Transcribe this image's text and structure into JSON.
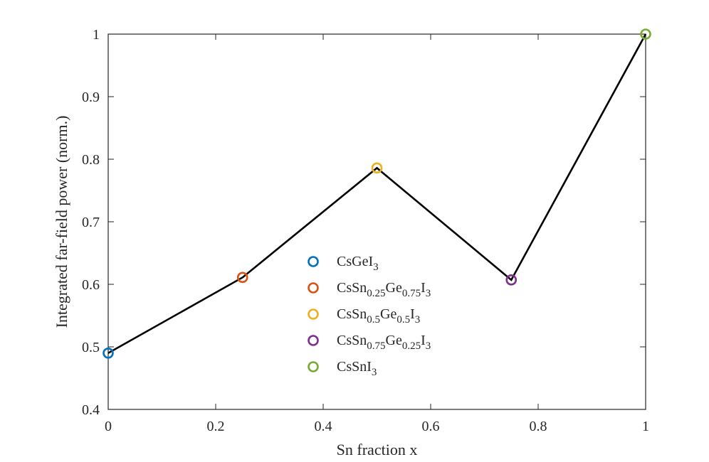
{
  "chart_data": {
    "type": "line",
    "title": "",
    "xlabel": "Sn fraction x",
    "ylabel": "Integrated far-field power (norm.)",
    "xlim": [
      0,
      1
    ],
    "ylim": [
      0.4,
      1
    ],
    "xticks": [
      "0",
      "0.2",
      "0.4",
      "0.6",
      "0.8",
      "1"
    ],
    "yticks": [
      "0.4",
      "0.5",
      "0.6",
      "0.7",
      "0.8",
      "0.9",
      "1"
    ],
    "grid": false,
    "legend_position": "center",
    "line_color": "#000000",
    "points": [
      {
        "x": 0,
        "y": 0.49,
        "color": "#0072BD",
        "label": {
          "parts": [
            [
              "CsGeI",
              ""
            ],
            [
              "3",
              "sub"
            ]
          ]
        }
      },
      {
        "x": 0.25,
        "y": 0.611,
        "color": "#D95319",
        "label": {
          "parts": [
            [
              "CsSn",
              ""
            ],
            [
              "0.25",
              "sub"
            ],
            [
              "Ge",
              ""
            ],
            [
              "0.75",
              "sub"
            ],
            [
              "I",
              ""
            ],
            [
              "3",
              "sub"
            ]
          ]
        }
      },
      {
        "x": 0.5,
        "y": 0.786,
        "color": "#EDB120",
        "label": {
          "parts": [
            [
              "CsSn",
              ""
            ],
            [
              "0.5",
              "sub"
            ],
            [
              "Ge",
              ""
            ],
            [
              "0.5",
              "sub"
            ],
            [
              "I",
              ""
            ],
            [
              "3",
              "sub"
            ]
          ]
        }
      },
      {
        "x": 0.75,
        "y": 0.607,
        "color": "#7E2F8E",
        "label": {
          "parts": [
            [
              "CsSn",
              ""
            ],
            [
              "0.75",
              "sub"
            ],
            [
              "Ge",
              ""
            ],
            [
              "0.25",
              "sub"
            ],
            [
              "I",
              ""
            ],
            [
              "3",
              "sub"
            ]
          ]
        }
      },
      {
        "x": 1,
        "y": 1.0,
        "color": "#77AC30",
        "label": {
          "parts": [
            [
              "CsSnI",
              ""
            ],
            [
              "3",
              "sub"
            ]
          ]
        }
      }
    ]
  }
}
